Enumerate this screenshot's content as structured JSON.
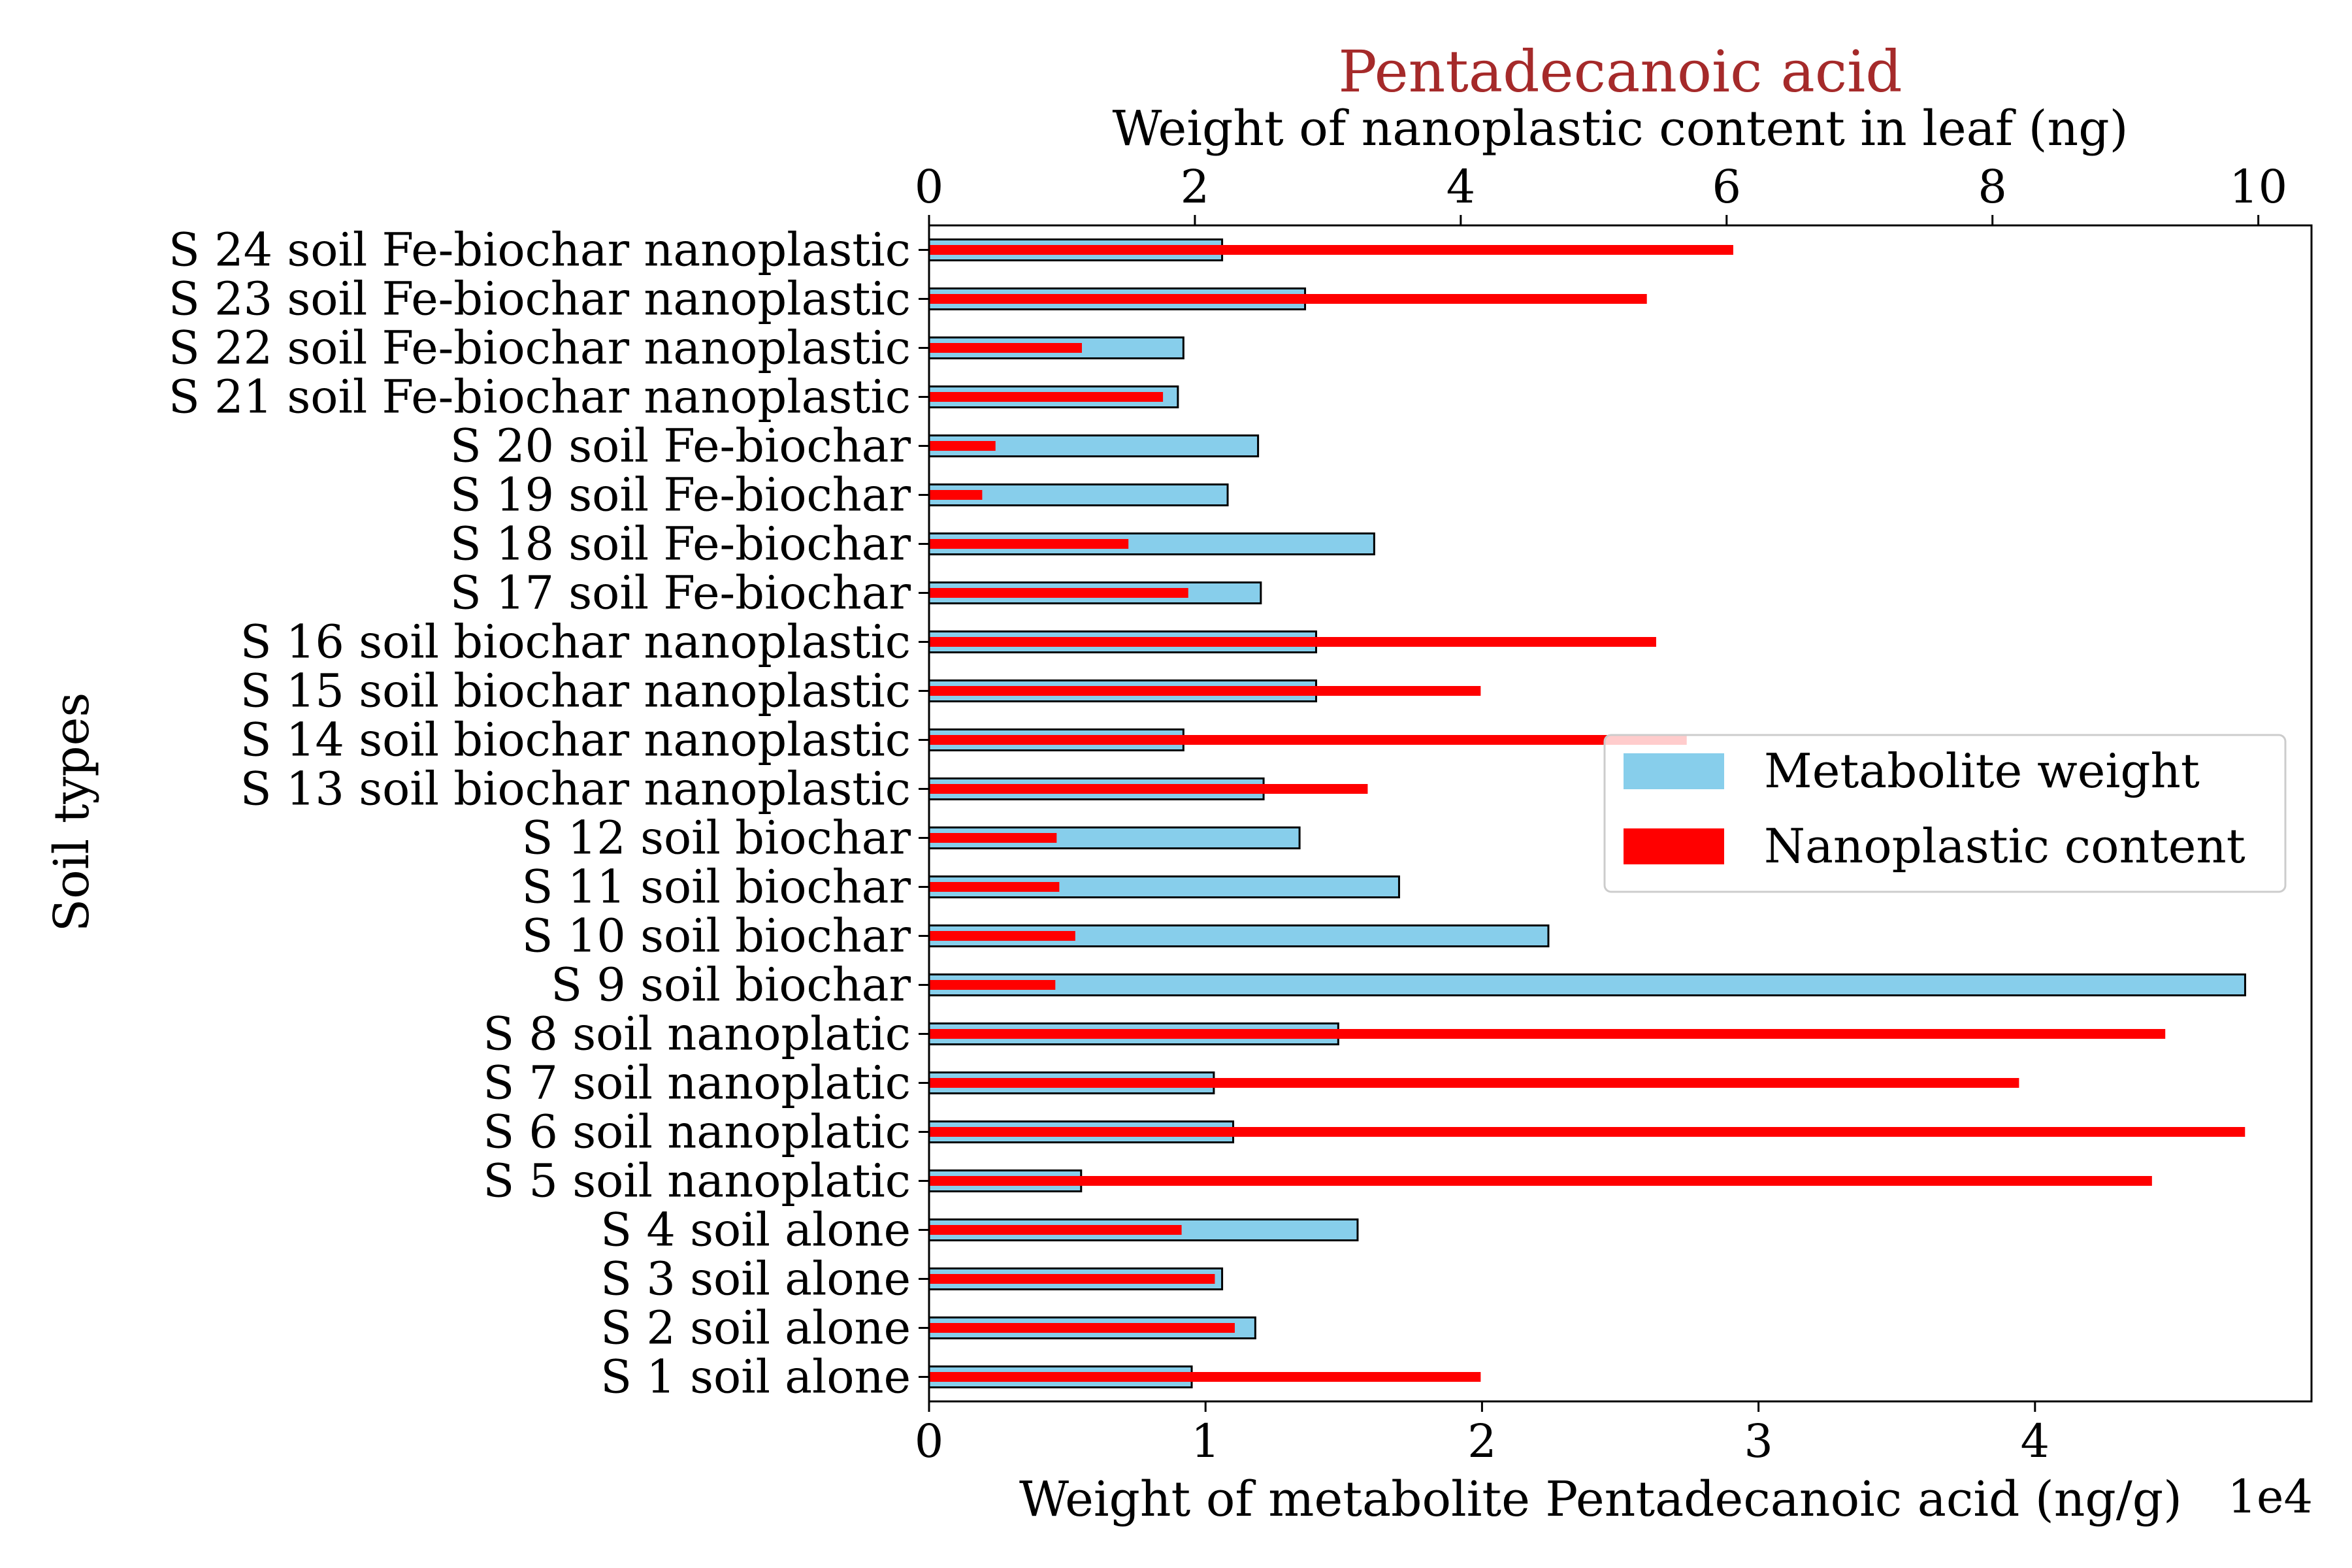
{
  "chart_data": {
    "type": "bar",
    "orientation": "horizontal",
    "title": "Pentadecanoic acid",
    "title_color": "#a52a2a",
    "ylabel": "Soil types",
    "categories": [
      "S 1 soil alone",
      "S 2 soil alone",
      "S 3 soil alone",
      "S 4 soil alone",
      "S 5 soil nanoplatic",
      "S 6 soil nanoplatic",
      "S 7 soil nanoplatic",
      "S 8 soil nanoplatic",
      "S 9 soil biochar",
      "S 10 soil biochar",
      "S 11 soil biochar",
      "S 12 soil biochar",
      "S 13 soil biochar nanoplastic",
      "S 14 soil biochar nanoplastic",
      "S 15 soil biochar nanoplastic",
      "S 16 soil biochar nanoplastic",
      "S 17 soil Fe-biochar",
      "S 18 soil Fe-biochar",
      "S 19 soil Fe-biochar",
      "S 20 soil Fe-biochar",
      "S 21 soil Fe-biochar nanoplastic",
      "S 22 soil Fe-biochar nanoplastic",
      "S 23 soil Fe-biochar nanoplastic",
      "S 24 soil Fe-biochar nanoplastic"
    ],
    "bottom_axis": {
      "label": "Weight of metabolite Pentadecanoic acid (ng/g)",
      "offset_text": "1e4",
      "xlim": [
        0,
        50000
      ],
      "ticks": [
        0,
        10000,
        20000,
        30000,
        40000
      ],
      "tick_labels": [
        "0",
        "1",
        "2",
        "3",
        "4"
      ]
    },
    "top_axis": {
      "label": "Weight of nanoplastic content in leaf (ng)",
      "xlim": [
        0,
        10.4
      ],
      "ticks": [
        0,
        2,
        4,
        6,
        8,
        10
      ],
      "tick_labels": [
        "0",
        "2",
        "4",
        "6",
        "8",
        "10"
      ]
    },
    "series": [
      {
        "name": "Metabolite weight",
        "axis": "bottom",
        "color": "#87ceeb",
        "edgecolor": "#000000",
        "values": [
          9500,
          11800,
          10600,
          15500,
          5500,
          11000,
          10300,
          14800,
          47600,
          22400,
          17000,
          13400,
          12100,
          9200,
          14000,
          14000,
          12000,
          16100,
          10800,
          11900,
          9000,
          9200,
          13600,
          10600
        ]
      },
      {
        "name": "Nanoplastic content",
        "axis": "top",
        "color": "#ff0000",
        "values": [
          4.15,
          2.3,
          2.15,
          1.9,
          9.2,
          9.9,
          8.2,
          9.3,
          0.95,
          1.1,
          0.98,
          0.96,
          3.3,
          5.7,
          4.15,
          5.47,
          1.95,
          1.5,
          0.4,
          0.5,
          1.76,
          1.15,
          5.4,
          6.05
        ]
      }
    ],
    "legend_position": "center-right",
    "grid": false
  }
}
